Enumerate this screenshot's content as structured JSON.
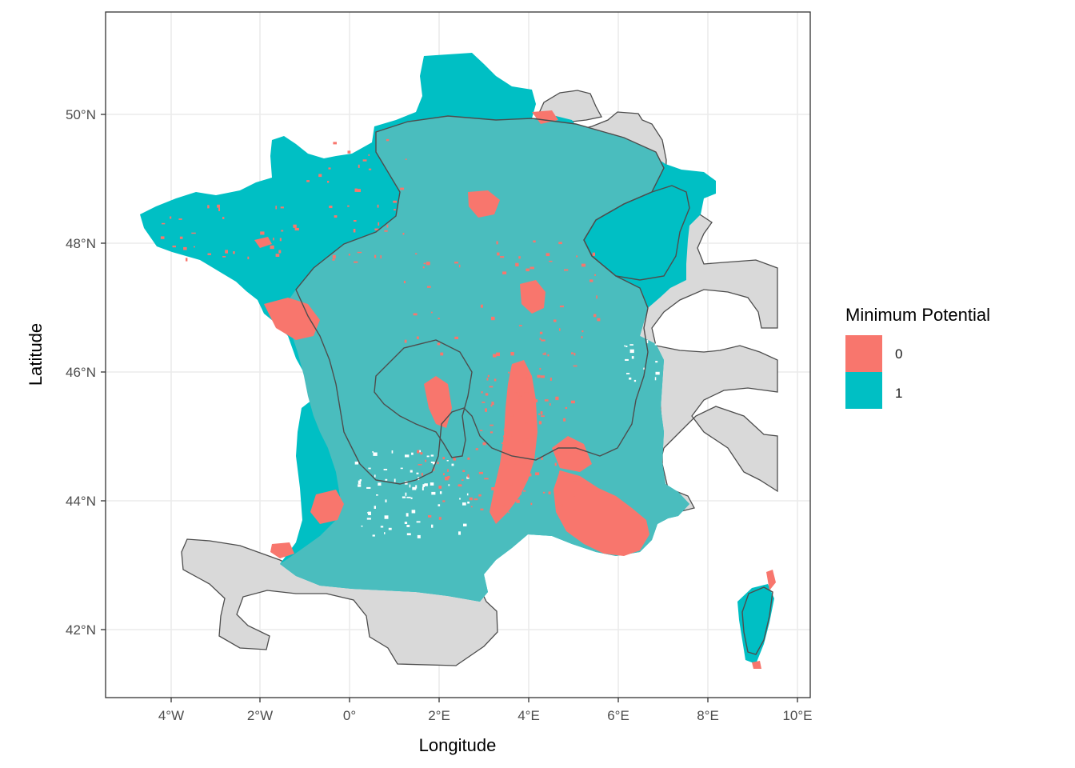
{
  "chart_data": {
    "type": "map",
    "title": "",
    "xlabel": "Longitude",
    "ylabel": "Latitude",
    "xlim": [
      -5.5,
      10.4
    ],
    "ylim": [
      41.0,
      51.6
    ],
    "x_ticks": [
      {
        "value": -4,
        "label": "4°W"
      },
      {
        "value": -2,
        "label": "2°W"
      },
      {
        "value": 0,
        "label": "0°"
      },
      {
        "value": 2,
        "label": "2°E"
      },
      {
        "value": 4,
        "label": "4°E"
      },
      {
        "value": 6,
        "label": "6°E"
      },
      {
        "value": 8,
        "label": "8°E"
      },
      {
        "value": 10,
        "label": "10°E"
      }
    ],
    "y_ticks": [
      {
        "value": 42,
        "label": "42°N"
      },
      {
        "value": 44,
        "label": "44°N"
      },
      {
        "value": 46,
        "label": "46°N"
      },
      {
        "value": 48,
        "label": "48°N"
      },
      {
        "value": 50,
        "label": "50°N"
      }
    ],
    "legend": {
      "title": "Minimum Potential",
      "position": "right",
      "items": [
        {
          "label": "0",
          "color": "#F8766D"
        },
        {
          "label": "1",
          "color": "#00BFC4"
        }
      ]
    },
    "colors": {
      "class_0": "#F8766D",
      "class_1": "#00BFC4",
      "overlay_fill": "#D9D9D9",
      "overlay_stroke": "#4D4D4D",
      "grid": "#EBEBEB",
      "panel_border": "#333333"
    }
  }
}
